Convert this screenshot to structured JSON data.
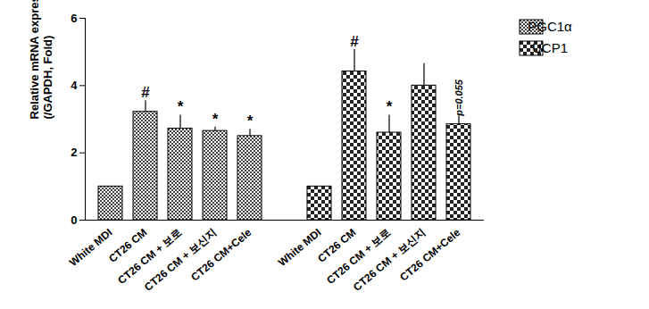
{
  "chart_data": {
    "type": "bar",
    "y_label": "Relative mRNA expressions\n(/GAPDH, Fold)",
    "categories": [
      "White MDI",
      "CT26 CM",
      "CT26 CM + 보로",
      "CT26 CM + 보신지",
      "CT26 CM+Cele"
    ],
    "series": [
      {
        "name": "PGC1α",
        "color": "#444444",
        "values": [
          1,
          3.22,
          2.72,
          2.65,
          2.5
        ],
        "errors": [
          0,
          0.33,
          0.4,
          0.12,
          0.2
        ]
      },
      {
        "name": "UCP1",
        "color": "#222222",
        "values": [
          1,
          4.42,
          2.6,
          4.0,
          2.85
        ],
        "errors": [
          0,
          0.65,
          0.52,
          0.65,
          0.25
        ]
      }
    ],
    "annotations": [
      {
        "series": "PGC1α",
        "category": "CT26 CM",
        "text": "#"
      },
      {
        "series": "PGC1α",
        "category": "CT26 CM + 보로",
        "text": "*"
      },
      {
        "series": "PGC1α",
        "category": "CT26 CM + 보신지",
        "text": "*"
      },
      {
        "series": "PGC1α",
        "category": "CT26 CM+Cele",
        "text": "*"
      },
      {
        "series": "UCP1",
        "category": "CT26 CM",
        "text": "#"
      },
      {
        "series": "UCP1",
        "category": "CT26 CM + 보로",
        "text": "*"
      },
      {
        "series": "UCP1",
        "category": "CT26 CM+Cele",
        "text": "p=0.055"
      }
    ],
    "ylim": [
      0,
      6
    ],
    "yticks": [
      0,
      2,
      4,
      6
    ],
    "legend": "upper right",
    "grid": false
  }
}
